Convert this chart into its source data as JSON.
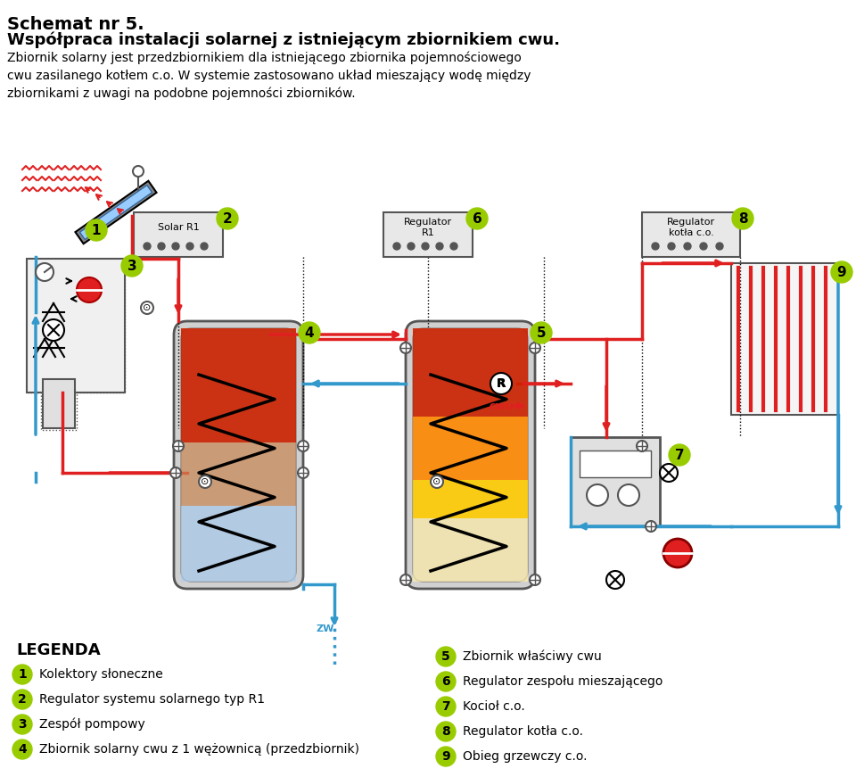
{
  "title_line1": "Schemat nr 5.",
  "title_line2": "Współpraca instalacji solarnej z istniejącym zbiornikiem cwu.",
  "subtitle": "Zbiornik solarny jest przedzbiornikiem dla istniejącego zbiornika pojemnościowego\ncwu zasilanego kotłem c.o. W systemie zastosowano układ mieszający wodę między\nzbiornikami z uwagi na podobne pojemności zbiorników.",
  "legend_title": "LEGENDA",
  "legend_items_left": [
    {
      "num": "1",
      "text": "Kolektory słoneczne"
    },
    {
      "num": "2",
      "text": "Regulator systemu solarnego typ R1"
    },
    {
      "num": "3",
      "text": "Zespół pompowy"
    },
    {
      "num": "4",
      "text": "Zbiornik solarny cwu z 1 wężownicą (przedzbiornik)"
    }
  ],
  "legend_items_right": [
    {
      "num": "5",
      "text": "Zbiornik właściwy cwu"
    },
    {
      "num": "6",
      "text": "Regulator zespołu mieszającego"
    },
    {
      "num": "7",
      "text": "Kocioł c.o."
    },
    {
      "num": "8",
      "text": "Regulator kotła c.o."
    },
    {
      "num": "9",
      "text": "Obieg grzewczy c.o."
    }
  ],
  "color_red": "#e02020",
  "color_blue": "#3399cc",
  "color_yellow": "#e8d800",
  "color_green_badge": "#99cc00",
  "color_dark_gray": "#555555",
  "color_light_gray": "#cccccc",
  "color_tank_red": "#cc2200",
  "color_tank_orange": "#ff8800",
  "color_tank_yellow": "#ffcc00",
  "color_tank_blue": "#aaccee",
  "color_tank_gray": "#aaaaaa",
  "bg_color": "#ffffff"
}
